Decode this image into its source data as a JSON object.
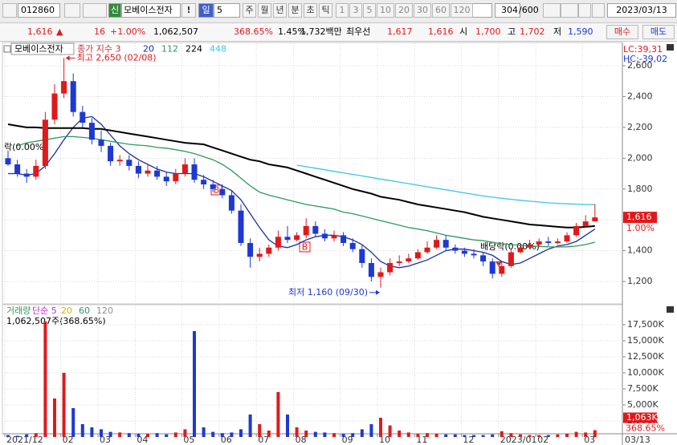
{
  "toolbar": {
    "code": "012860",
    "credit": "신",
    "name": "모베이스전자",
    "alert": "!",
    "period": "일",
    "period_n": "5",
    "periods": [
      "주",
      "월",
      "년",
      "분",
      "초",
      "틱"
    ],
    "intervals": [
      "1",
      "3",
      "5",
      "10",
      "20",
      "30",
      "60",
      "120"
    ],
    "count": "304",
    "count_max": "/600",
    "date": "2023/03/13"
  },
  "quote": {
    "price": "1,616",
    "arrow": "▲",
    "change": "16",
    "rate": "+1.00%",
    "volume": "1,062,507",
    "volume_rate": "368.65%",
    "turnover": "1.45%",
    "amount": "1,732백만",
    "best_label": "최우선",
    "ask": "1,617",
    "bid": "1,616",
    "open_label": "시",
    "open": "1,700",
    "high_label": "고",
    "high": "1,702",
    "low_label": "저",
    "low": "1,590",
    "buy": "매수",
    "sell": "매도"
  },
  "chart_data": [
    {
      "type": "candlestick",
      "title": "모베이스전자",
      "price_label": "종가 지수 3",
      "categories": [
        "2021/12",
        null,
        null,
        null,
        null,
        null,
        "02",
        null,
        null,
        null,
        "03",
        null,
        null,
        null,
        "04",
        null,
        null,
        null,
        null,
        "05",
        null,
        null,
        null,
        "06",
        null,
        null,
        null,
        "07",
        null,
        null,
        null,
        "08",
        null,
        null,
        null,
        null,
        "09",
        null,
        null,
        null,
        "10",
        null,
        null,
        null,
        "11",
        null,
        null,
        null,
        null,
        "12",
        null,
        null,
        null,
        "2023/01",
        null,
        null,
        null,
        "02",
        null,
        null,
        null,
        null,
        "03",
        null
      ],
      "last_date": "03/13",
      "open": [
        2000,
        1960,
        1900,
        1880,
        1950,
        2250,
        2420,
        2500,
        2300,
        2230,
        2120,
        2080,
        1980,
        1990,
        1950,
        1900,
        1920,
        1880,
        1850,
        1900,
        1960,
        1860,
        1830,
        1800,
        1760,
        1660,
        1450,
        1360,
        1380,
        1420,
        1490,
        1470,
        1500,
        1560,
        1510,
        1480,
        1500,
        1450,
        1410,
        1320,
        1230,
        1260,
        1320,
        1330,
        1350,
        1390,
        1420,
        1470,
        1420,
        1400,
        1380,
        1370,
        1330,
        1250,
        1300,
        1390,
        1420,
        1440,
        1460,
        1450,
        1460,
        1500,
        1560,
        1590
      ],
      "high": [
        2050,
        1990,
        1930,
        1990,
        2300,
        2480,
        2650,
        2550,
        2340,
        2260,
        2180,
        2100,
        2020,
        2020,
        1980,
        1960,
        1950,
        1910,
        1930,
        2000,
        2000,
        1890,
        1860,
        1830,
        1790,
        1700,
        1480,
        1420,
        1440,
        1530,
        1560,
        1520,
        1610,
        1590,
        1540,
        1530,
        1520,
        1480,
        1440,
        1350,
        1290,
        1350,
        1370,
        1380,
        1410,
        1460,
        1500,
        1500,
        1440,
        1420,
        1410,
        1390,
        1350,
        1330,
        1410,
        1440,
        1470,
        1480,
        1490,
        1480,
        1520,
        1580,
        1630,
        1702
      ],
      "low": [
        1950,
        1880,
        1840,
        1860,
        1930,
        2220,
        2390,
        2270,
        2200,
        2090,
        2040,
        1950,
        1950,
        1920,
        1870,
        1880,
        1860,
        1820,
        1830,
        1880,
        1840,
        1800,
        1780,
        1740,
        1640,
        1430,
        1290,
        1330,
        1360,
        1400,
        1450,
        1460,
        1480,
        1490,
        1460,
        1460,
        1430,
        1390,
        1290,
        1200,
        1160,
        1240,
        1300,
        1320,
        1340,
        1380,
        1410,
        1400,
        1380,
        1360,
        1350,
        1300,
        1220,
        1230,
        1290,
        1380,
        1410,
        1430,
        1430,
        1440,
        1450,
        1490,
        1550,
        1590
      ],
      "close": [
        1960,
        1900,
        1880,
        1950,
        2250,
        2420,
        2500,
        2300,
        2230,
        2120,
        2080,
        1980,
        1990,
        1950,
        1900,
        1920,
        1880,
        1850,
        1900,
        1960,
        1860,
        1830,
        1800,
        1760,
        1660,
        1450,
        1360,
        1380,
        1420,
        1490,
        1470,
        1500,
        1560,
        1510,
        1480,
        1500,
        1450,
        1410,
        1320,
        1230,
        1260,
        1320,
        1330,
        1350,
        1390,
        1420,
        1470,
        1420,
        1400,
        1380,
        1370,
        1330,
        1250,
        1300,
        1390,
        1420,
        1440,
        1460,
        1450,
        1460,
        1500,
        1560,
        1590,
        1616
      ],
      "up_color": "#e0191b",
      "down_color": "#1c39d6",
      "series": [
        {
          "name": "20",
          "color": "#1a2fa8",
          "values": [
            1900,
            1900,
            1890,
            1900,
            1950,
            2030,
            2120,
            2200,
            2260,
            2270,
            2220,
            2150,
            2080,
            2030,
            1990,
            1960,
            1930,
            1910,
            1900,
            1900,
            1900,
            1880,
            1850,
            1820,
            1790,
            1730,
            1640,
            1550,
            1470,
            1430,
            1420,
            1440,
            1470,
            1490,
            1500,
            1500,
            1490,
            1470,
            1440,
            1390,
            1330,
            1300,
            1290,
            1300,
            1320,
            1340,
            1370,
            1400,
            1410,
            1410,
            1400,
            1390,
            1370,
            1330,
            1310,
            1320,
            1350,
            1380,
            1410,
            1430,
            1440,
            1460,
            1500,
            1540
          ]
        },
        {
          "name": "112",
          "color": "#2e9a5a",
          "values": [
            null,
            2080,
            2100,
            2110,
            2120,
            2130,
            2140,
            2140,
            2135,
            2130,
            2120,
            2110,
            2100,
            2090,
            2085,
            2080,
            2070,
            2065,
            2055,
            2045,
            2030,
            2010,
            1990,
            1960,
            1920,
            1870,
            1820,
            1780,
            1760,
            1745,
            1730,
            1715,
            1700,
            1690,
            1680,
            1670,
            1650,
            1640,
            1625,
            1610,
            1595,
            1580,
            1565,
            1550,
            1540,
            1530,
            1515,
            1500,
            1490,
            1480,
            1470,
            1465,
            1455,
            1445,
            1440,
            1435,
            1430,
            1428,
            1425,
            1424,
            1425,
            1430,
            1440,
            1455
          ]
        },
        {
          "name": "224",
          "color": "#000000",
          "values": [
            2220,
            2210,
            2200,
            2200,
            2195,
            2195,
            2195,
            2195,
            2195,
            2190,
            2190,
            2180,
            2170,
            2160,
            2150,
            2140,
            2130,
            2120,
            2110,
            2100,
            2095,
            2090,
            2070,
            2050,
            2030,
            2010,
            1990,
            1980,
            1960,
            1950,
            1940,
            1920,
            1900,
            1880,
            1860,
            1840,
            1820,
            1800,
            1785,
            1770,
            1750,
            1740,
            1730,
            1715,
            1700,
            1690,
            1680,
            1670,
            1660,
            1650,
            1635,
            1620,
            1610,
            1600,
            1590,
            1580,
            1570,
            1565,
            1560,
            1555,
            1550,
            1550,
            1555,
            1560
          ]
        },
        {
          "name": "448",
          "color": "#3cc4e8",
          "values": [
            null,
            null,
            null,
            null,
            null,
            null,
            null,
            null,
            null,
            null,
            null,
            null,
            null,
            null,
            null,
            null,
            null,
            null,
            null,
            null,
            null,
            null,
            null,
            null,
            null,
            null,
            null,
            null,
            null,
            null,
            null,
            1955,
            1945,
            1935,
            1925,
            1915,
            1905,
            1895,
            1885,
            1875,
            1865,
            1855,
            1845,
            1835,
            1825,
            1815,
            1805,
            1795,
            1785,
            1775,
            1765,
            1755,
            1747,
            1740,
            1733,
            1727,
            1721,
            1716,
            1711,
            1707,
            1704,
            1702,
            1700,
            1699
          ]
        }
      ],
      "ylim": [
        1060,
        2730
      ],
      "yticks": [
        {
          "value": 1200,
          "label": "1,200"
        },
        {
          "value": 1400,
          "label": "1,400"
        },
        {
          "value": 1600,
          "label": "1,600"
        },
        {
          "value": 1800,
          "label": "1,800"
        },
        {
          "value": 2000,
          "label": "2,000"
        },
        {
          "value": 2200,
          "label": "2,200"
        },
        {
          "value": 2400,
          "label": "2,400"
        },
        {
          "value": 2600,
          "label": "2,600"
        }
      ],
      "grid": true,
      "last_price": {
        "value": 1616,
        "label": "1,616"
      },
      "last_change": "1.00%",
      "lc": "LC:39,31",
      "hc": "HC:-39,02",
      "annotations": {
        "high": "최고 2,650 (02/08)",
        "low": "최저 1,160 (09/30)",
        "ex_dividend": [
          "락(0.00%)",
          "배당락(0.00%)"
        ],
        "buy": [
          "B",
          "B"
        ]
      }
    },
    {
      "type": "bar",
      "title": "거래량",
      "title_color": "#2e9a5a",
      "ma_labels": [
        {
          "name": "단순 5",
          "color": "#c030c0"
        },
        {
          "name": "20",
          "color": "#d8b000"
        },
        {
          "name": "60",
          "color": "#2e9a5a"
        },
        {
          "name": "120",
          "color": "#909090"
        }
      ],
      "value_label": "1,062,507주(368.65%)",
      "values": [
        300,
        200,
        400,
        600,
        18000,
        6000,
        10000,
        4500,
        2000,
        1500,
        1200,
        800,
        700,
        600,
        500,
        500,
        600,
        400,
        700,
        1200,
        16500,
        1500,
        800,
        600,
        700,
        1200,
        3500,
        2000,
        1000,
        7000,
        3500,
        1500,
        1000,
        800,
        700,
        600,
        500,
        600,
        1200,
        2000,
        3000,
        1800,
        1000,
        700,
        500,
        600,
        500,
        400,
        400,
        300,
        300,
        300,
        400,
        900,
        600,
        400,
        300,
        300,
        300,
        400,
        500,
        800,
        700,
        1062.507
      ],
      "ylim": [
        0,
        20000
      ],
      "yticks": [
        {
          "value": 2500,
          "label": "2,500K"
        },
        {
          "value": 5000,
          "label": "5,000K"
        },
        {
          "value": 7500,
          "label": "7,500K"
        },
        {
          "value": 10000,
          "label": "10,000K"
        },
        {
          "value": 12500,
          "label": "12,500K"
        },
        {
          "value": 15000,
          "label": "15,000K"
        },
        {
          "value": 17500,
          "label": "17,500K"
        }
      ],
      "grid": true,
      "last_value": {
        "value": 1062.507,
        "label": "1,063K"
      },
      "last_rate": "368.65%"
    }
  ]
}
